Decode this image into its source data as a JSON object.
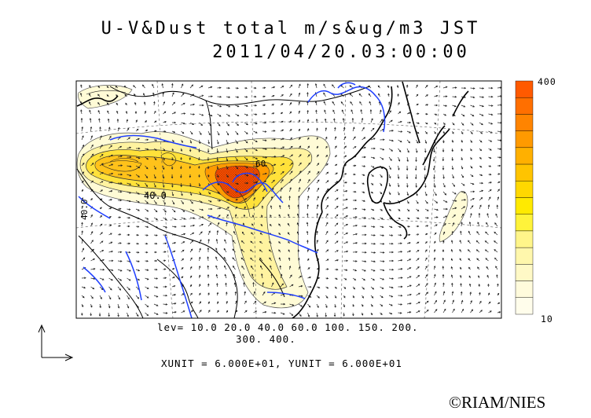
{
  "title_line1": "U-V&Dust total m/s&ug/m3 JST",
  "title_line2": "2011/04/20.03:00:00",
  "levels_line1": "lev= 10.0 20.0 40.0 60.0 100. 150. 200.",
  "levels_line2": "300. 400.",
  "units_text": "XUNIT = 6.000E+01, YUNIT = 6.000E+01",
  "colorbar": {
    "max_label": "400",
    "min_label": "10",
    "colors": [
      "#ff5a00",
      "#ff6f00",
      "#ff8400",
      "#ff9a00",
      "#ffb000",
      "#ffc400",
      "#ffd800",
      "#ffea00",
      "#fff33a",
      "#fff58a",
      "#fff7ac",
      "#fff9c6",
      "#fffbdc",
      "#fffdeb"
    ]
  },
  "contour_labels": [
    "40.0",
    "40.0",
    "60"
  ],
  "colors": {
    "coastline": "#000000",
    "rivers": "#1f3fff",
    "arrows": "#222222"
  },
  "credit": "©RIAM/NIES"
}
